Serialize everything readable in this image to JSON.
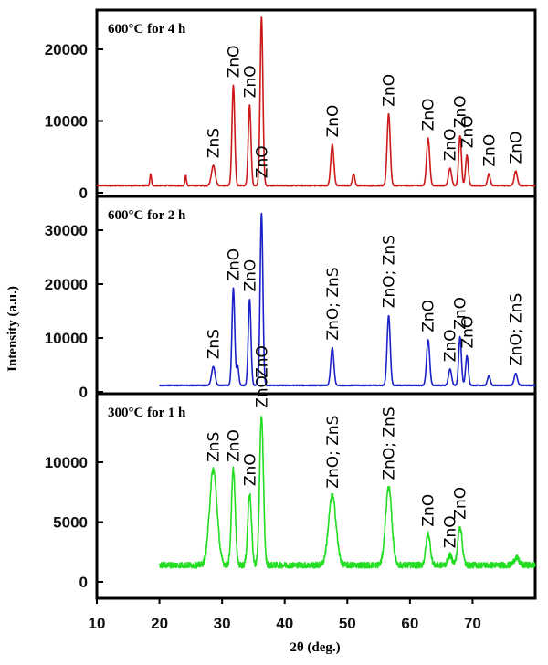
{
  "chart_data": {
    "type": "line",
    "xlabel": "2θ (deg.)",
    "ylabel": "Intensity (a.u.)",
    "xlim": [
      10,
      80
    ],
    "x_ticks": [
      10,
      20,
      30,
      40,
      50,
      60,
      70
    ],
    "panels": [
      {
        "condition": "600°C for 4 h",
        "color": "#cc1a1a",
        "ylim": [
          0,
          25000
        ],
        "y_ticks": [
          0,
          10000,
          20000
        ],
        "x_start": 10,
        "baseline": 1000,
        "noise": 80,
        "peaks": [
          {
            "x": 18.6,
            "y": 1600,
            "w": 0.12
          },
          {
            "x": 24.2,
            "y": 1400,
            "w": 0.12
          },
          {
            "x": 28.6,
            "y": 2800,
            "w": 0.3
          },
          {
            "x": 31.8,
            "y": 14000,
            "w": 0.22
          },
          {
            "x": 34.4,
            "y": 11200,
            "w": 0.22
          },
          {
            "x": 36.3,
            "y": 23500,
            "w": 0.22
          },
          {
            "x": 47.6,
            "y": 5700,
            "w": 0.25
          },
          {
            "x": 51.0,
            "y": 1600,
            "w": 0.2
          },
          {
            "x": 56.6,
            "y": 10000,
            "w": 0.25
          },
          {
            "x": 62.9,
            "y": 6600,
            "w": 0.25
          },
          {
            "x": 66.4,
            "y": 2400,
            "w": 0.25
          },
          {
            "x": 68.0,
            "y": 7000,
            "w": 0.22
          },
          {
            "x": 69.1,
            "y": 4200,
            "w": 0.22
          },
          {
            "x": 72.6,
            "y": 1600,
            "w": 0.22
          },
          {
            "x": 76.9,
            "y": 2000,
            "w": 0.25
          }
        ],
        "labels": [
          {
            "text": "ZnS",
            "x": 28.6
          },
          {
            "text": "ZnO",
            "x": 31.8
          },
          {
            "text": "ZnO",
            "x": 34.4
          },
          {
            "text": "ZnO",
            "x": 36.3
          },
          {
            "text": "ZnO",
            "x": 47.6
          },
          {
            "text": "ZnO",
            "x": 56.6
          },
          {
            "text": "ZnO",
            "x": 62.9
          },
          {
            "text": "ZnO",
            "x": 66.4
          },
          {
            "text": "ZnO",
            "x": 68.0
          },
          {
            "text": "ZnO",
            "x": 69.1
          },
          {
            "text": "ZnO",
            "x": 72.6
          },
          {
            "text": "ZnO",
            "x": 76.9
          }
        ]
      },
      {
        "condition": "600°C for 2 h",
        "color": "#1a22c8",
        "ylim": [
          0,
          35000
        ],
        "y_ticks": [
          0,
          10000,
          20000,
          30000
        ],
        "x_start": 20,
        "baseline": 1200,
        "noise": 90,
        "peaks": [
          {
            "x": 28.6,
            "y": 3500,
            "w": 0.28
          },
          {
            "x": 31.8,
            "y": 18000,
            "w": 0.22
          },
          {
            "x": 32.5,
            "y": 3500,
            "w": 0.18
          },
          {
            "x": 34.4,
            "y": 16000,
            "w": 0.22
          },
          {
            "x": 36.3,
            "y": 32000,
            "w": 0.22
          },
          {
            "x": 47.6,
            "y": 7000,
            "w": 0.25
          },
          {
            "x": 56.6,
            "y": 13000,
            "w": 0.25
          },
          {
            "x": 62.9,
            "y": 8500,
            "w": 0.25
          },
          {
            "x": 66.4,
            "y": 3000,
            "w": 0.25
          },
          {
            "x": 68.0,
            "y": 9000,
            "w": 0.22
          },
          {
            "x": 69.1,
            "y": 5500,
            "w": 0.22
          },
          {
            "x": 72.6,
            "y": 1800,
            "w": 0.22
          },
          {
            "x": 76.9,
            "y": 2200,
            "w": 0.25
          }
        ],
        "labels": [
          {
            "text": "ZnS",
            "x": 28.6
          },
          {
            "text": "ZnO",
            "x": 31.8
          },
          {
            "text": "ZnO",
            "x": 34.4
          },
          {
            "text": "ZnO",
            "x": 36.3
          },
          {
            "text": "ZnO; ZnS",
            "x": 47.6
          },
          {
            "text": "ZnO; ZnS",
            "x": 56.6
          },
          {
            "text": "ZnO",
            "x": 62.9
          },
          {
            "text": "ZnO",
            "x": 66.4
          },
          {
            "text": "ZnO",
            "x": 68.0
          },
          {
            "text": "ZnO",
            "x": 69.1
          },
          {
            "text": "ZnO; ZnS",
            "x": 76.9
          }
        ]
      },
      {
        "condition": "300°C for 1 h",
        "color": "#22dd22",
        "ylim": [
          0,
          15000
        ],
        "y_ticks": [
          0,
          5000,
          10000
        ],
        "x_start": 20,
        "baseline": 1400,
        "noise": 250,
        "peaks": [
          {
            "x": 28.6,
            "y": 8000,
            "w": 0.6
          },
          {
            "x": 31.8,
            "y": 8000,
            "w": 0.3
          },
          {
            "x": 34.4,
            "y": 6000,
            "w": 0.3
          },
          {
            "x": 36.3,
            "y": 12500,
            "w": 0.3
          },
          {
            "x": 47.6,
            "y": 5800,
            "w": 0.6
          },
          {
            "x": 56.6,
            "y": 6500,
            "w": 0.5
          },
          {
            "x": 62.9,
            "y": 2600,
            "w": 0.35
          },
          {
            "x": 66.4,
            "y": 800,
            "w": 0.35
          },
          {
            "x": 68.0,
            "y": 3200,
            "w": 0.35
          },
          {
            "x": 77.0,
            "y": 600,
            "w": 0.4
          }
        ],
        "labels": [
          {
            "text": "ZnS",
            "x": 28.6
          },
          {
            "text": "ZnO",
            "x": 31.8
          },
          {
            "text": "ZnO",
            "x": 34.4
          },
          {
            "text": "ZnO",
            "x": 36.3
          },
          {
            "text": "ZnO; ZnS",
            "x": 47.6
          },
          {
            "text": "ZnO; ZnS",
            "x": 56.6
          },
          {
            "text": "ZnO",
            "x": 62.9
          },
          {
            "text": "ZnO",
            "x": 66.4
          },
          {
            "text": "ZnO",
            "x": 68.0
          }
        ]
      }
    ]
  }
}
